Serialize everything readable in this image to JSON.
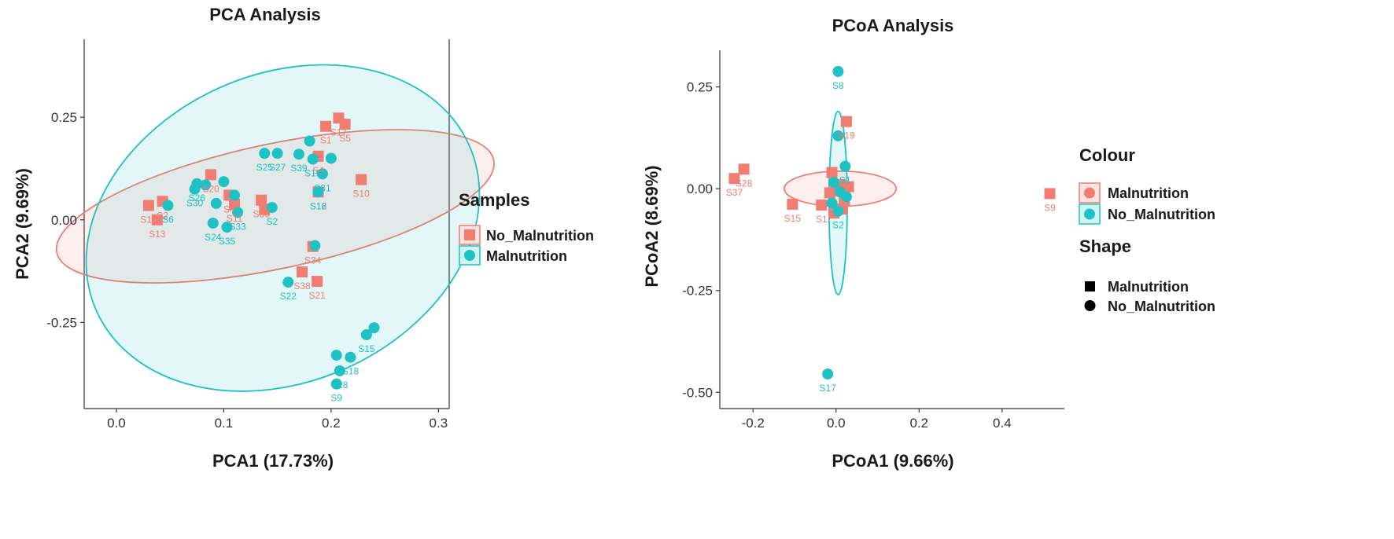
{
  "colors": {
    "red": "#f07c72",
    "teal": "#1ec1c4",
    "black": "#000000"
  },
  "chart_data": [
    {
      "type": "scatter",
      "title": "PCA Analysis",
      "xlabel": "PCA1 (17.73%)",
      "ylabel": "PCA2 (9.69%)",
      "xlim": [
        -0.03,
        0.31
      ],
      "ylim": [
        -0.46,
        0.44
      ],
      "xticks": [
        0.0,
        0.1,
        0.2,
        0.3
      ],
      "xtick_labels": [
        "0.0",
        "0.1",
        "0.2",
        "0.3"
      ],
      "yticks": [
        0.25,
        0.0,
        -0.25
      ],
      "ytick_labels": [
        "0.25",
        "0.00",
        "-0.25"
      ],
      "legend": {
        "title": "Samples",
        "entries": [
          "No_Malnutrition",
          "Malnutrition"
        ]
      },
      "ellipses": [
        {
          "group": "No_Malnutrition",
          "cx": 0.148,
          "cy": 0.033,
          "rx": 0.208,
          "ry": 0.152,
          "angle_deg": 12
        },
        {
          "group": "Malnutrition",
          "cx": 0.155,
          "cy": -0.02,
          "rx": 0.19,
          "ry": 0.375,
          "angle_deg": 24
        }
      ],
      "series": [
        {
          "name": "No_Malnutrition",
          "marker": "square",
          "points": [
            {
              "x": 0.195,
              "y": 0.228,
              "label": "S1"
            },
            {
              "x": 0.207,
              "y": 0.248,
              "label": "S17"
            },
            {
              "x": 0.213,
              "y": 0.233,
              "label": "S5"
            },
            {
              "x": 0.188,
              "y": 0.155,
              "label": "S4"
            },
            {
              "x": 0.228,
              "y": 0.098,
              "label": "S10"
            },
            {
              "x": 0.188,
              "y": 0.068,
              "label": "S12"
            },
            {
              "x": 0.088,
              "y": 0.11,
              "label": "S20"
            },
            {
              "x": 0.105,
              "y": 0.06,
              "label": "S4"
            },
            {
              "x": 0.11,
              "y": 0.038,
              "label": "S11"
            },
            {
              "x": 0.135,
              "y": 0.048,
              "label": "S36"
            },
            {
              "x": 0.138,
              "y": 0.025,
              "label": ""
            },
            {
              "x": 0.03,
              "y": 0.035,
              "label": "S14"
            },
            {
              "x": 0.043,
              "y": 0.045,
              "label": "S2"
            },
            {
              "x": 0.038,
              "y": 0.0,
              "label": "S13"
            },
            {
              "x": 0.183,
              "y": -0.065,
              "label": "S34"
            },
            {
              "x": 0.173,
              "y": -0.127,
              "label": "S38"
            },
            {
              "x": 0.187,
              "y": -0.15,
              "label": "S21"
            }
          ]
        },
        {
          "name": "Malnutrition",
          "marker": "circle",
          "points": [
            {
              "x": 0.18,
              "y": 0.192,
              "label": ""
            },
            {
              "x": 0.138,
              "y": 0.162,
              "label": "S25"
            },
            {
              "x": 0.15,
              "y": 0.162,
              "label": "S27"
            },
            {
              "x": 0.17,
              "y": 0.16,
              "label": "S39"
            },
            {
              "x": 0.183,
              "y": 0.148,
              "label": "S19"
            },
            {
              "x": 0.192,
              "y": 0.112,
              "label": "S31"
            },
            {
              "x": 0.2,
              "y": 0.15,
              "label": ""
            },
            {
              "x": 0.188,
              "y": 0.068,
              "label": "S16"
            },
            {
              "x": 0.075,
              "y": 0.088,
              "label": "S26"
            },
            {
              "x": 0.073,
              "y": 0.075,
              "label": "S30"
            },
            {
              "x": 0.083,
              "y": 0.085,
              "label": ""
            },
            {
              "x": 0.1,
              "y": 0.093,
              "label": ""
            },
            {
              "x": 0.11,
              "y": 0.06,
              "label": ""
            },
            {
              "x": 0.093,
              "y": 0.04,
              "label": ""
            },
            {
              "x": 0.113,
              "y": 0.018,
              "label": "S33"
            },
            {
              "x": 0.145,
              "y": 0.03,
              "label": "S2"
            },
            {
              "x": 0.048,
              "y": 0.035,
              "label": "S6"
            },
            {
              "x": 0.09,
              "y": -0.008,
              "label": "S24"
            },
            {
              "x": 0.103,
              "y": -0.018,
              "label": "S35"
            },
            {
              "x": 0.185,
              "y": -0.063,
              "label": ""
            },
            {
              "x": 0.16,
              "y": -0.152,
              "label": "S22"
            },
            {
              "x": 0.24,
              "y": -0.263,
              "label": ""
            },
            {
              "x": 0.233,
              "y": -0.28,
              "label": "S15"
            },
            {
              "x": 0.218,
              "y": -0.335,
              "label": "S18"
            },
            {
              "x": 0.205,
              "y": -0.33,
              "label": ""
            },
            {
              "x": 0.208,
              "y": -0.368,
              "label": "S28"
            },
            {
              "x": 0.205,
              "y": -0.4,
              "label": "S9"
            }
          ]
        }
      ]
    },
    {
      "type": "scatter",
      "title": "PCoA Analysis",
      "xlabel": "PCoA1 (9.66%)",
      "ylabel": "PCoA2 (8.69%)",
      "xlim": [
        -0.28,
        0.55
      ],
      "ylim": [
        -0.54,
        0.34
      ],
      "xticks": [
        -0.2,
        0.0,
        0.2,
        0.4
      ],
      "xtick_labels": [
        "-0.2",
        "0.0",
        "0.2",
        "0.4"
      ],
      "yticks": [
        0.25,
        0.0,
        -0.25,
        -0.5
      ],
      "ytick_labels": [
        "0.25",
        "0.00",
        "-0.25",
        "-0.50"
      ],
      "legend": {
        "colour_title": "Colour",
        "colour_entries": [
          "Malnutrition",
          "No_Malnutrition"
        ],
        "shape_title": "Shape",
        "shape_entries": [
          "Malnutrition",
          "No_Malnutrition"
        ]
      },
      "ellipses": [
        {
          "group": "Malnutrition",
          "cx": 0.01,
          "cy": 0.0,
          "rx": 0.135,
          "ry": 0.043,
          "angle_deg": 0
        },
        {
          "group": "No_Malnutrition",
          "cx": 0.005,
          "cy": -0.035,
          "rx": 0.022,
          "ry": 0.225,
          "angle_deg": 0
        }
      ],
      "series": [
        {
          "name": "Malnutrition",
          "marker": "square",
          "points": [
            {
              "x": -0.245,
              "y": 0.025,
              "label": "S37"
            },
            {
              "x": -0.222,
              "y": 0.048,
              "label": "S28"
            },
            {
              "x": -0.105,
              "y": -0.038,
              "label": "S15"
            },
            {
              "x": 0.515,
              "y": -0.012,
              "label": "S9"
            },
            {
              "x": 0.025,
              "y": 0.165,
              "label": "S19"
            },
            {
              "x": -0.035,
              "y": -0.04,
              "label": "S1"
            },
            {
              "x": -0.01,
              "y": 0.04,
              "label": ""
            },
            {
              "x": 0.01,
              "y": 0.01,
              "label": ""
            },
            {
              "x": -0.015,
              "y": -0.01,
              "label": ""
            },
            {
              "x": 0.005,
              "y": -0.005,
              "label": ""
            },
            {
              "x": 0.02,
              "y": -0.03,
              "label": ""
            },
            {
              "x": -0.005,
              "y": -0.06,
              "label": ""
            },
            {
              "x": 0.03,
              "y": 0.005,
              "label": ""
            },
            {
              "x": 0.015,
              "y": -0.05,
              "label": ""
            }
          ]
        },
        {
          "name": "No_Malnutrition",
          "marker": "circle",
          "points": [
            {
              "x": 0.005,
              "y": 0.288,
              "label": "S8"
            },
            {
              "x": 0.005,
              "y": 0.13,
              "label": ""
            },
            {
              "x": 0.022,
              "y": 0.055,
              "label": "S1"
            },
            {
              "x": -0.005,
              "y": 0.015,
              "label": ""
            },
            {
              "x": 0.01,
              "y": -0.008,
              "label": ""
            },
            {
              "x": 0.025,
              "y": -0.02,
              "label": ""
            },
            {
              "x": -0.01,
              "y": -0.035,
              "label": ""
            },
            {
              "x": 0.005,
              "y": -0.055,
              "label": "S2"
            },
            {
              "x": -0.02,
              "y": -0.455,
              "label": "S17"
            }
          ]
        }
      ]
    }
  ]
}
